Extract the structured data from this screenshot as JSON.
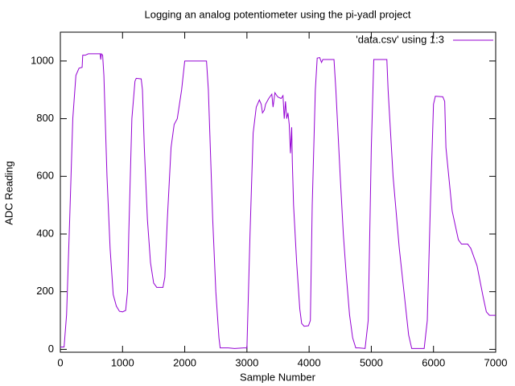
{
  "chart_data": {
    "type": "line",
    "title": "Logging an analog potentiometer using the pi-yadl project",
    "x_label": "Sample Number",
    "y_label": "ADC Reading",
    "xlim": [
      0,
      7000
    ],
    "ylim": [
      -10,
      1100
    ],
    "xticks": [
      0,
      1000,
      2000,
      3000,
      4000,
      5000,
      6000,
      7000
    ],
    "yticks": [
      0,
      200,
      400,
      600,
      800,
      1000
    ],
    "legend": "top-right",
    "x": [
      0,
      60,
      100,
      150,
      200,
      250,
      300,
      350,
      360,
      400,
      450,
      640,
      650,
      660,
      680,
      700,
      750,
      800,
      850,
      900,
      950,
      1000,
      1050,
      1080,
      1100,
      1150,
      1200,
      1220,
      1300,
      1320,
      1350,
      1400,
      1450,
      1500,
      1550,
      1650,
      1680,
      1720,
      1780,
      1830,
      1880,
      1950,
      2000,
      2350,
      2380,
      2450,
      2500,
      2550,
      2570,
      2700,
      2800,
      2950,
      3000,
      3050,
      3100,
      3150,
      3200,
      3230,
      3250,
      3280,
      3300,
      3350,
      3400,
      3420,
      3450,
      3480,
      3500,
      3550,
      3580,
      3600,
      3620,
      3640,
      3660,
      3680,
      3700,
      3720,
      3730,
      3750,
      3800,
      3850,
      3880,
      3920,
      3990,
      4020,
      4050,
      4100,
      4130,
      4170,
      4200,
      4220,
      4400,
      4430,
      4500,
      4550,
      4600,
      4650,
      4700,
      4750,
      4800,
      4900,
      4950,
      5000,
      5040,
      5250,
      5270,
      5350,
      5450,
      5550,
      5600,
      5650,
      5850,
      5900,
      5950,
      6000,
      6030,
      6150,
      6180,
      6200,
      6300,
      6400,
      6450,
      6550,
      6600,
      6650,
      6700,
      6800,
      6850,
      6900,
      7000
    ],
    "series": [
      {
        "name": "'data.csv' using 1:3",
        "color": "#9400d3",
        "values": [
          8,
          8,
          120,
          450,
          800,
          950,
          975,
          978,
          1020,
          1020,
          1025,
          1025,
          1005,
          1025,
          1020,
          950,
          600,
          350,
          190,
          150,
          132,
          130,
          135,
          200,
          400,
          800,
          930,
          940,
          938,
          900,
          700,
          450,
          300,
          230,
          215,
          215,
          250,
          450,
          700,
          780,
          800,
          900,
          1000,
          1000,
          900,
          450,
          200,
          40,
          5,
          5,
          3,
          5,
          5,
          400,
          750,
          840,
          865,
          850,
          820,
          830,
          850,
          870,
          885,
          840,
          890,
          880,
          875,
          870,
          880,
          800,
          860,
          800,
          820,
          780,
          680,
          770,
          650,
          500,
          300,
          140,
          90,
          80,
          82,
          100,
          500,
          900,
          1010,
          1012,
          995,
          1005,
          1005,
          900,
          600,
          400,
          250,
          120,
          40,
          5,
          5,
          3,
          100,
          700,
          1005,
          1005,
          900,
          600,
          350,
          150,
          50,
          3,
          3,
          100,
          500,
          850,
          878,
          876,
          860,
          700,
          480,
          380,
          365,
          365,
          350,
          320,
          290,
          180,
          130,
          118,
          118
        ]
      }
    ]
  }
}
